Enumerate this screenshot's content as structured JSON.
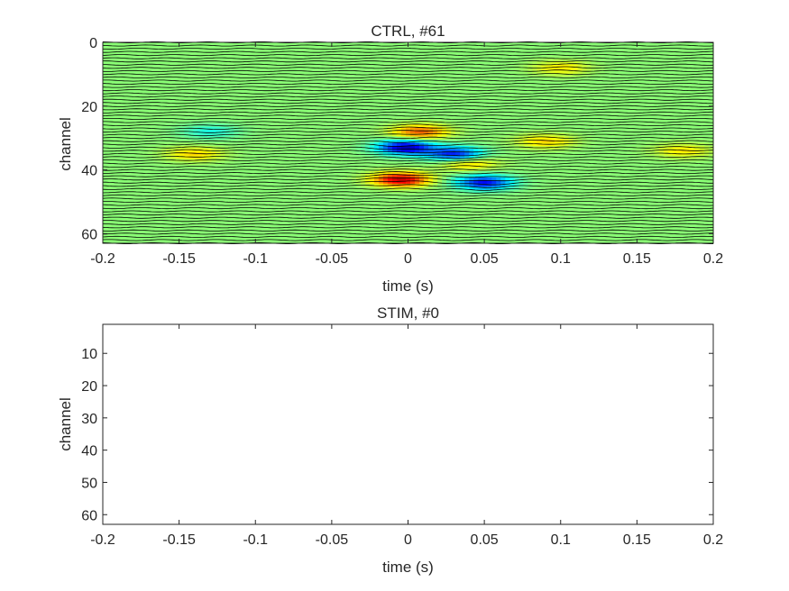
{
  "chart_data": [
    {
      "type": "heatmap",
      "title": "CTRL, #61",
      "xlabel": "time (s)",
      "ylabel": "channel",
      "xlim": [
        -0.2,
        0.2
      ],
      "ylim": [
        0,
        63
      ],
      "y_reversed": true,
      "x_ticks": [
        "-0.2",
        "-0.15",
        "-0.1",
        "-0.05",
        "0",
        "0.05",
        "0.1",
        "0.15",
        "0.2"
      ],
      "y_ticks": [
        "0",
        "20",
        "40",
        "60"
      ],
      "x_tick_values": [
        -0.2,
        -0.15,
        -0.1,
        -0.05,
        0,
        0.05,
        0.1,
        0.15,
        0.2
      ],
      "y_tick_values": [
        0,
        20,
        40,
        60
      ],
      "colormap": "jet",
      "channels": 64,
      "overlay": "black per-channel voltage traces",
      "features": [
        {
          "time": -0.002,
          "channel": 33,
          "value": -1.0,
          "note": "dark blue negative peak"
        },
        {
          "time": 0.03,
          "channel": 35,
          "value": -0.8
        },
        {
          "time": 0.05,
          "channel": 44,
          "value": -0.85,
          "note": "late negative band"
        },
        {
          "time": -0.005,
          "channel": 43,
          "value": 0.95,
          "note": "red positive peak"
        },
        {
          "time": 0.008,
          "channel": 28,
          "value": 0.6
        },
        {
          "time": 0.04,
          "channel": 38,
          "value": 0.35
        },
        {
          "time": -0.14,
          "channel": 35,
          "value": 0.35
        },
        {
          "time": -0.13,
          "channel": 28,
          "value": -0.25
        },
        {
          "time": 0.1,
          "channel": 8,
          "value": 0.3
        },
        {
          "time": 0.09,
          "channel": 31,
          "value": 0.35
        },
        {
          "time": 0.18,
          "channel": 34,
          "value": 0.3
        }
      ]
    },
    {
      "type": "heatmap",
      "title": "STIM, #0",
      "xlabel": "time (s)",
      "ylabel": "channel",
      "xlim": [
        -0.2,
        0.2
      ],
      "ylim": [
        1,
        63
      ],
      "y_reversed": true,
      "x_ticks": [
        "-0.2",
        "-0.15",
        "-0.1",
        "-0.05",
        "0",
        "0.05",
        "0.1",
        "0.15",
        "0.2"
      ],
      "y_ticks": [
        "10",
        "20",
        "30",
        "40",
        "50",
        "60"
      ],
      "x_tick_values": [
        -0.2,
        -0.15,
        -0.1,
        -0.05,
        0,
        0.05,
        0.1,
        0.15,
        0.2
      ],
      "y_tick_values": [
        10,
        20,
        30,
        40,
        50,
        60
      ],
      "empty": true
    }
  ]
}
